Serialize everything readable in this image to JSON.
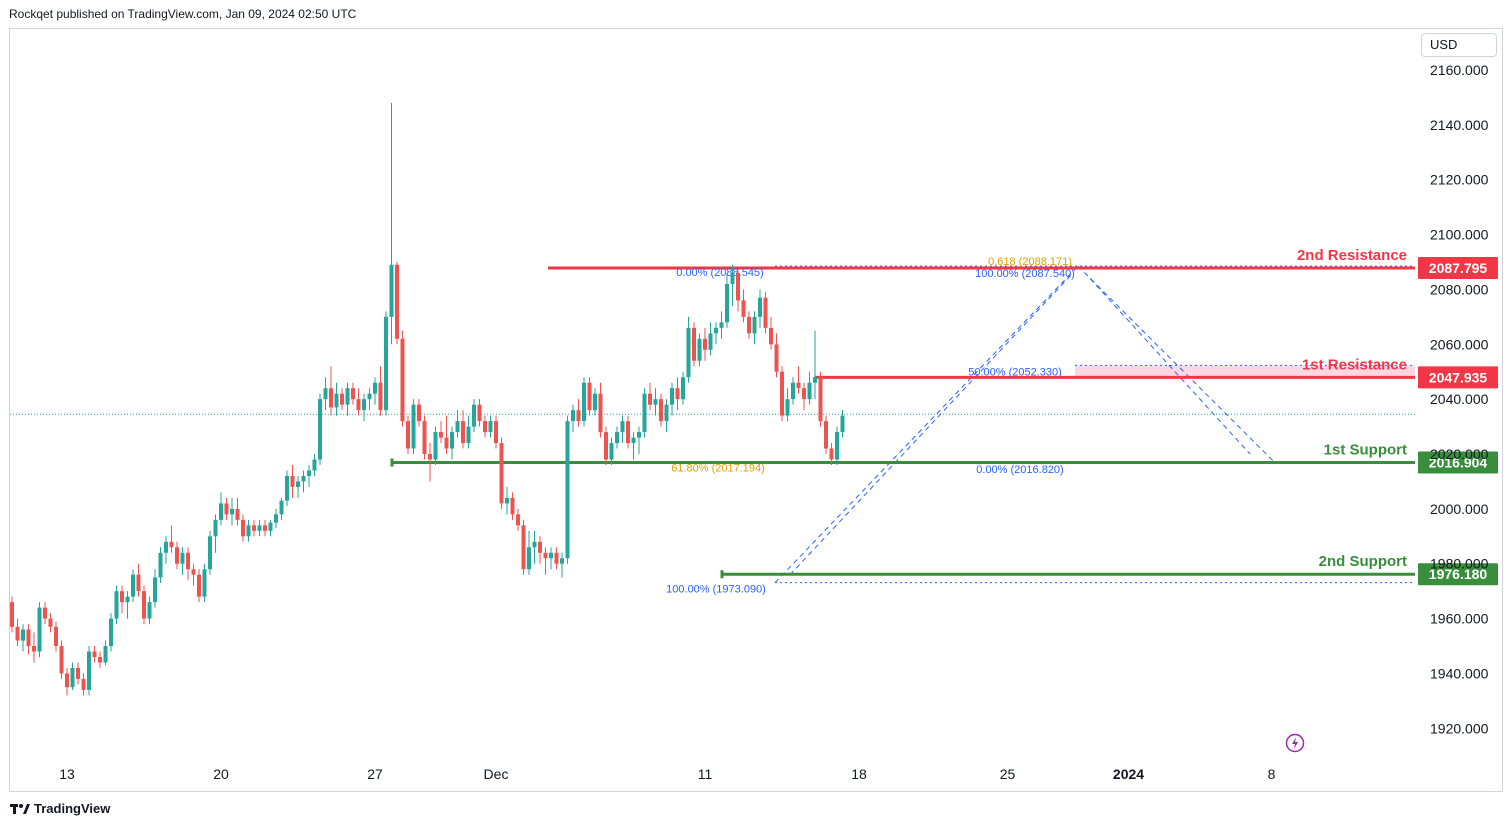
{
  "header": {
    "text": "Rockqet published on TradingView.com, Jan 09, 2024 02:50 UTC"
  },
  "footer": {
    "brand": "TradingView"
  },
  "currency": "USD",
  "icons": {
    "logo": "tradingview-logo-icon",
    "replay": "lightning-icon"
  },
  "colors": {
    "up": "#26a69a",
    "down": "#ef5350",
    "resistance": "#f23645",
    "support": "#388e3c",
    "fib": "#2962ff",
    "fib_gold": "#e0a100"
  },
  "chart_data": {
    "type": "candlestick",
    "title": "",
    "ylim": [
      1900,
      2170
    ],
    "y_ticks": [
      "1920.000",
      "1940.000",
      "1960.000",
      "1980.000",
      "2000.000",
      "2020.000",
      "2040.000",
      "2060.000",
      "2080.000",
      "2100.000",
      "2120.000",
      "2140.000",
      "2160.000"
    ],
    "x_ticks": [
      {
        "label": "13",
        "bar": 10
      },
      {
        "label": "20",
        "bar": 38
      },
      {
        "label": "27",
        "bar": 66
      },
      {
        "label": "Dec",
        "bar": 88
      },
      {
        "label": "11",
        "bar": 126
      },
      {
        "label": "18",
        "bar": 154
      },
      {
        "label": "25",
        "bar": 181
      },
      {
        "label": "2024",
        "bar": 203
      },
      {
        "label": "8",
        "bar": 229
      }
    ],
    "last_price": 2034.5,
    "levels": [
      {
        "name": "2nd Resistance",
        "value": "2087.795",
        "kind": "resistance"
      },
      {
        "name": "1st Resistance",
        "value": "2047.935",
        "kind": "resistance"
      },
      {
        "name": "1st Support",
        "value": "2016.904",
        "kind": "support"
      },
      {
        "name": "2nd Support",
        "value": "1976.180",
        "kind": "support"
      }
    ],
    "fib_labels": [
      {
        "text": "0.00% (2088.545)",
        "price": 2088.5,
        "bar": 126
      },
      {
        "text": "61.80% (2017.194)",
        "price": 2017.2,
        "bar": 126
      },
      {
        "text": "100.00% (1973.090)",
        "price": 1973.1,
        "bar": 126
      },
      {
        "text": "0.618 (2088.171)",
        "price": 2092.5,
        "bar": 195
      },
      {
        "text": "100.00% (2087.540)",
        "price": 2088.2,
        "bar": 195
      },
      {
        "text": "50.00% (2052.330)",
        "price": 2052.3,
        "bar": 178
      },
      {
        "text": "0.00% (2016.820)",
        "price": 2016.8,
        "bar": 195
      }
    ],
    "candles": [
      [
        1966,
        1968,
        1955,
        1957
      ],
      [
        1957,
        1960,
        1950,
        1952
      ],
      [
        1952,
        1958,
        1948,
        1956
      ],
      [
        1956,
        1958,
        1947,
        1950
      ],
      [
        1950,
        1955,
        1944,
        1948
      ],
      [
        1948,
        1966,
        1946,
        1964
      ],
      [
        1964,
        1966,
        1958,
        1960
      ],
      [
        1960,
        1962,
        1955,
        1957
      ],
      [
        1957,
        1959,
        1948,
        1950
      ],
      [
        1950,
        1952,
        1938,
        1940
      ],
      [
        1940,
        1942,
        1932,
        1935
      ],
      [
        1935,
        1944,
        1934,
        1942
      ],
      [
        1942,
        1944,
        1936,
        1938
      ],
      [
        1938,
        1940,
        1932,
        1934
      ],
      [
        1934,
        1950,
        1932,
        1948
      ],
      [
        1948,
        1950,
        1944,
        1946
      ],
      [
        1946,
        1948,
        1942,
        1944
      ],
      [
        1944,
        1952,
        1943,
        1950
      ],
      [
        1950,
        1962,
        1948,
        1960
      ],
      [
        1960,
        1972,
        1958,
        1970
      ],
      [
        1970,
        1972,
        1962,
        1966
      ],
      [
        1966,
        1970,
        1960,
        1968
      ],
      [
        1968,
        1978,
        1966,
        1976
      ],
      [
        1976,
        1980,
        1968,
        1970
      ],
      [
        1970,
        1972,
        1958,
        1960
      ],
      [
        1960,
        1968,
        1958,
        1966
      ],
      [
        1966,
        1978,
        1964,
        1975
      ],
      [
        1975,
        1986,
        1973,
        1984
      ],
      [
        1984,
        1990,
        1980,
        1988
      ],
      [
        1988,
        1994,
        1984,
        1986
      ],
      [
        1986,
        1988,
        1978,
        1980
      ],
      [
        1980,
        1986,
        1976,
        1984
      ],
      [
        1984,
        1986,
        1974,
        1978
      ],
      [
        1978,
        1980,
        1972,
        1976
      ],
      [
        1976,
        1978,
        1966,
        1968
      ],
      [
        1968,
        1980,
        1966,
        1978
      ],
      [
        1978,
        1992,
        1976,
        1990
      ],
      [
        1990,
        1998,
        1984,
        1996
      ],
      [
        1996,
        2006,
        1994,
        2002
      ],
      [
        2002,
        2004,
        1996,
        1998
      ],
      [
        1998,
        2004,
        1994,
        2000
      ],
      [
        2000,
        2004,
        1994,
        1996
      ],
      [
        1996,
        1998,
        1988,
        1990
      ],
      [
        1990,
        1996,
        1988,
        1994
      ],
      [
        1994,
        1996,
        1990,
        1992
      ],
      [
        1992,
        1996,
        1990,
        1994
      ],
      [
        1994,
        1996,
        1990,
        1992
      ],
      [
        1992,
        1996,
        1990,
        1995
      ],
      [
        1995,
        2000,
        1993,
        1998
      ],
      [
        1998,
        2004,
        1996,
        2003
      ],
      [
        2003,
        2014,
        2001,
        2012
      ],
      [
        2012,
        2016,
        2004,
        2008
      ],
      [
        2008,
        2012,
        2004,
        2010
      ],
      [
        2010,
        2014,
        2006,
        2012
      ],
      [
        2012,
        2016,
        2008,
        2014
      ],
      [
        2014,
        2020,
        2012,
        2018
      ],
      [
        2018,
        2042,
        2016,
        2040
      ],
      [
        2040,
        2048,
        2036,
        2044
      ],
      [
        2044,
        2052,
        2034,
        2037
      ],
      [
        2037,
        2046,
        2034,
        2042
      ],
      [
        2042,
        2044,
        2036,
        2038
      ],
      [
        2038,
        2046,
        2034,
        2044
      ],
      [
        2044,
        2046,
        2038,
        2040
      ],
      [
        2040,
        2044,
        2034,
        2036
      ],
      [
        2036,
        2042,
        2032,
        2040
      ],
      [
        2040,
        2044,
        2036,
        2042
      ],
      [
        2042,
        2048,
        2038,
        2046
      ],
      [
        2046,
        2052,
        2034,
        2036
      ],
      [
        2036,
        2072,
        2034,
        2070
      ],
      [
        2070,
        2148,
        2060,
        2089
      ],
      [
        2089,
        2090,
        2060,
        2062
      ],
      [
        2062,
        2065,
        2030,
        2032
      ],
      [
        2032,
        2034,
        2020,
        2022
      ],
      [
        2022,
        2040,
        2020,
        2038
      ],
      [
        2038,
        2040,
        2030,
        2032
      ],
      [
        2032,
        2034,
        2018,
        2020
      ],
      [
        2020,
        2024,
        2010,
        2018
      ],
      [
        2018,
        2030,
        2016,
        2028
      ],
      [
        2028,
        2032,
        2024,
        2026
      ],
      [
        2026,
        2034,
        2020,
        2022
      ],
      [
        2022,
        2030,
        2018,
        2028
      ],
      [
        2028,
        2036,
        2026,
        2032
      ],
      [
        2032,
        2036,
        2022,
        2024
      ],
      [
        2024,
        2034,
        2022,
        2030
      ],
      [
        2030,
        2040,
        2028,
        2038
      ],
      [
        2038,
        2040,
        2030,
        2032
      ],
      [
        2032,
        2034,
        2026,
        2028
      ],
      [
        2028,
        2034,
        2026,
        2032
      ],
      [
        2032,
        2034,
        2022,
        2024
      ],
      [
        2024,
        2026,
        2000,
        2002
      ],
      [
        2002,
        2008,
        1998,
        2004
      ],
      [
        2004,
        2006,
        1996,
        1998
      ],
      [
        1998,
        2000,
        1992,
        1994
      ],
      [
        1994,
        1996,
        1976,
        1978
      ],
      [
        1978,
        1992,
        1976,
        1986
      ],
      [
        1986,
        1992,
        1980,
        1988
      ],
      [
        1988,
        1990,
        1980,
        1984
      ],
      [
        1984,
        1986,
        1976,
        1982
      ],
      [
        1982,
        1986,
        1978,
        1984
      ],
      [
        1984,
        1986,
        1978,
        1980
      ],
      [
        1980,
        1984,
        1975,
        1982
      ],
      [
        1982,
        2034,
        1980,
        2032
      ],
      [
        2032,
        2038,
        2028,
        2036
      ],
      [
        2036,
        2040,
        2030,
        2032
      ],
      [
        2032,
        2048,
        2030,
        2046
      ],
      [
        2046,
        2048,
        2034,
        2036
      ],
      [
        2036,
        2044,
        2034,
        2042
      ],
      [
        2042,
        2046,
        2026,
        2028
      ],
      [
        2028,
        2030,
        2016,
        2018
      ],
      [
        2018,
        2026,
        2016,
        2024
      ],
      [
        2024,
        2030,
        2022,
        2028
      ],
      [
        2028,
        2034,
        2024,
        2032
      ],
      [
        2032,
        2034,
        2022,
        2024
      ],
      [
        2024,
        2028,
        2018,
        2026
      ],
      [
        2026,
        2030,
        2020,
        2028
      ],
      [
        2028,
        2044,
        2026,
        2042
      ],
      [
        2042,
        2046,
        2036,
        2038
      ],
      [
        2038,
        2044,
        2034,
        2040
      ],
      [
        2040,
        2042,
        2030,
        2032
      ],
      [
        2032,
        2040,
        2028,
        2038
      ],
      [
        2038,
        2046,
        2034,
        2044
      ],
      [
        2044,
        2048,
        2036,
        2040
      ],
      [
        2040,
        2050,
        2038,
        2048
      ],
      [
        2048,
        2070,
        2046,
        2066
      ],
      [
        2066,
        2068,
        2052,
        2054
      ],
      [
        2054,
        2064,
        2052,
        2062
      ],
      [
        2062,
        2066,
        2054,
        2058
      ],
      [
        2058,
        2068,
        2056,
        2064
      ],
      [
        2064,
        2068,
        2060,
        2066
      ],
      [
        2066,
        2072,
        2062,
        2068
      ],
      [
        2068,
        2086,
        2066,
        2082
      ],
      [
        2082,
        2089,
        2074,
        2086
      ],
      [
        2086,
        2087,
        2072,
        2076
      ],
      [
        2076,
        2080,
        2068,
        2070
      ],
      [
        2070,
        2072,
        2062,
        2064
      ],
      [
        2064,
        2072,
        2060,
        2070
      ],
      [
        2070,
        2080,
        2066,
        2077
      ],
      [
        2077,
        2079,
        2064,
        2066
      ],
      [
        2066,
        2070,
        2058,
        2060
      ],
      [
        2060,
        2064,
        2048,
        2050
      ],
      [
        2050,
        2052,
        2032,
        2034
      ],
      [
        2034,
        2044,
        2032,
        2040
      ],
      [
        2040,
        2048,
        2038,
        2046
      ],
      [
        2046,
        2052,
        2042,
        2044
      ],
      [
        2044,
        2046,
        2036,
        2040
      ],
      [
        2040,
        2050,
        2038,
        2046
      ],
      [
        2046,
        2065,
        2040,
        2048
      ],
      [
        2048,
        2050,
        2030,
        2032
      ],
      [
        2032,
        2034,
        2020,
        2022
      ],
      [
        2022,
        2024,
        2016,
        2018
      ],
      [
        2018,
        2030,
        2016,
        2028
      ],
      [
        2028,
        2036,
        2026,
        2034
      ]
    ]
  }
}
